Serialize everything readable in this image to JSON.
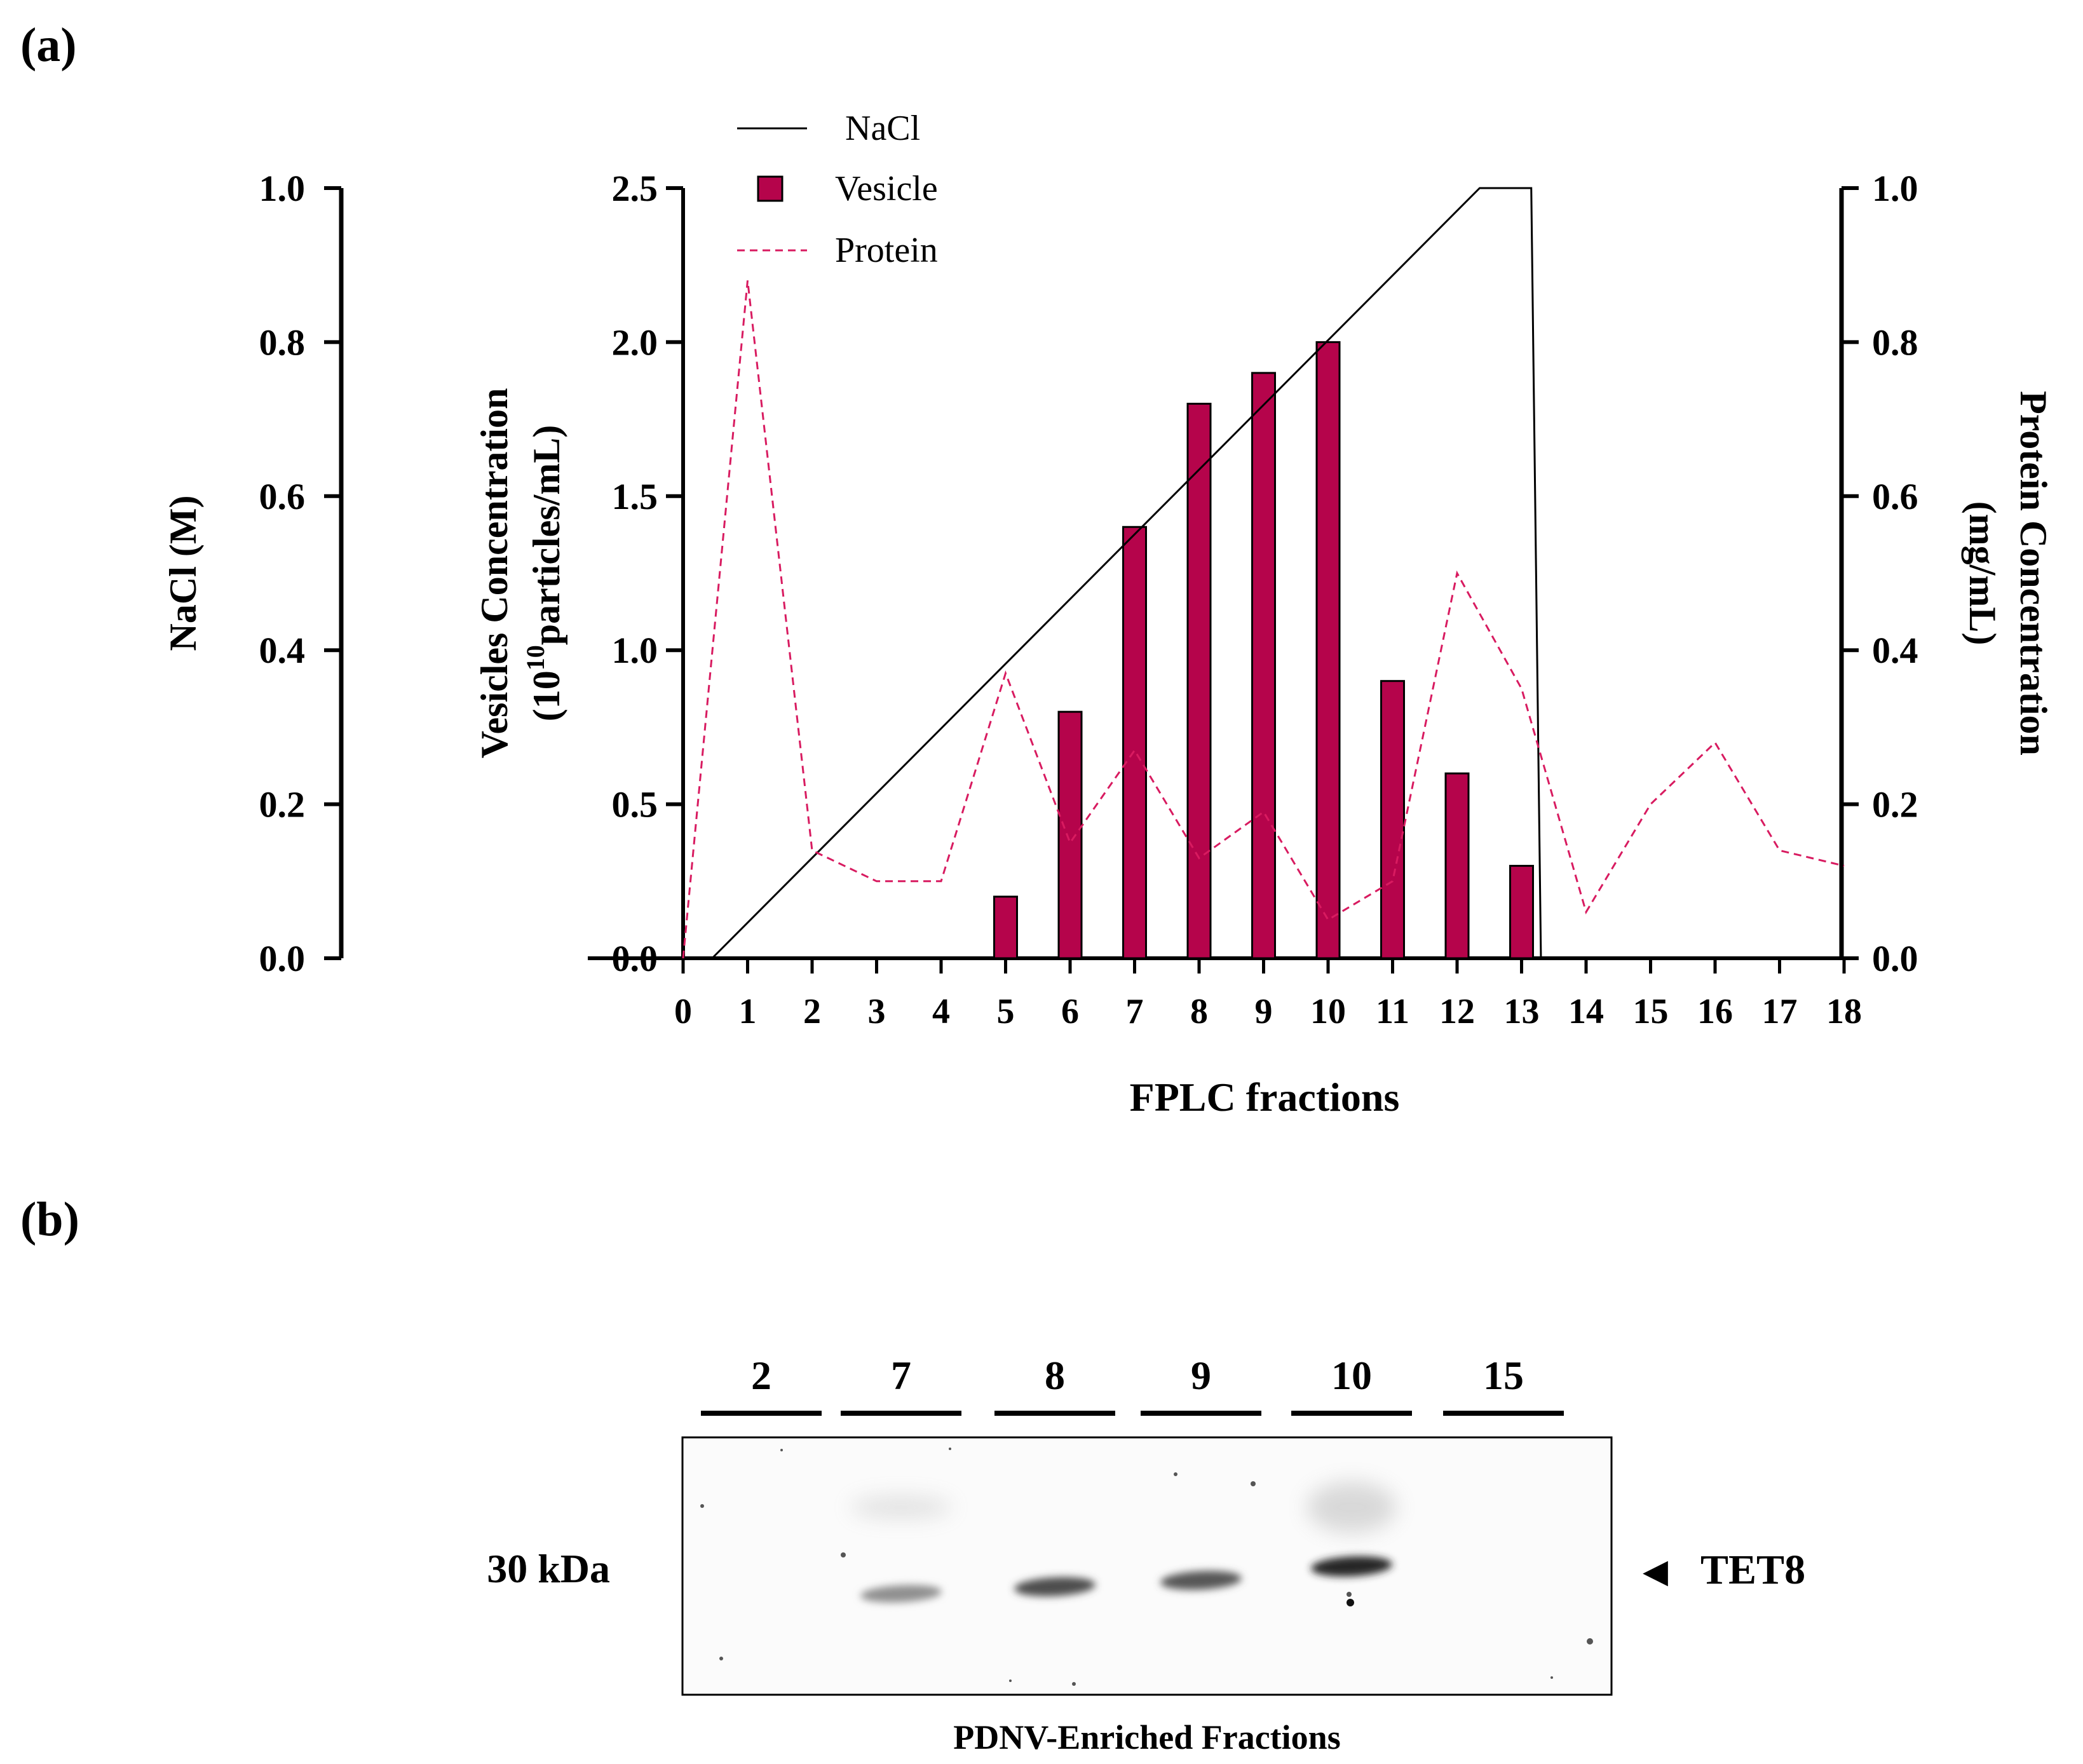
{
  "panel_a_label": "(a)",
  "panel_b_label": "(b)",
  "chart_data": {
    "type": "bar",
    "xlabel": "FPLC fractions",
    "x_ticks": [
      "0",
      "1",
      "2",
      "3",
      "4",
      "5",
      "6",
      "7",
      "8",
      "9",
      "10",
      "11",
      "12",
      "13",
      "14",
      "15",
      "16",
      "17",
      "18"
    ],
    "left_axis": {
      "label": "NaCl (M)",
      "ylim": [
        0,
        1.0
      ],
      "ticks": [
        "0.0",
        "0.2",
        "0.4",
        "0.6",
        "0.8",
        "1.0"
      ]
    },
    "middle_axis": {
      "label_line1": "Vesicles Concentration",
      "label_line2_pre": "(10",
      "label_line2_sup": "10",
      "label_line2_post": "particles/mL)",
      "ylim": [
        0,
        2.5
      ],
      "ticks": [
        "0.0",
        "0.5",
        "1.0",
        "1.5",
        "2.0",
        "2.5"
      ]
    },
    "right_axis": {
      "label_line1": "Protein Concentration",
      "label_line2": "(mg/mL)",
      "ylim": [
        0,
        1.0
      ],
      "ticks": [
        "0.0",
        "0.2",
        "0.4",
        "0.6",
        "0.8",
        "1.0"
      ]
    },
    "legend": [
      {
        "name": "NaCl",
        "style": "solid line",
        "color": "#000000"
      },
      {
        "name": "Vesicle",
        "style": "bar",
        "color": "#b5044b"
      },
      {
        "name": "Protein",
        "style": "dashed line",
        "color": "#d81b60"
      }
    ],
    "series": [
      {
        "name": "Vesicle",
        "type": "bar",
        "axis": "middle",
        "x": [
          5,
          6,
          7,
          8,
          9,
          10,
          11,
          12,
          13
        ],
        "values": [
          0.2,
          0.8,
          1.4,
          1.8,
          1.9,
          2.0,
          0.9,
          0.6,
          0.3
        ]
      },
      {
        "name": "NaCl",
        "type": "line",
        "axis": "left",
        "x": [
          0.45,
          12.35,
          13.15,
          13.3
        ],
        "values": [
          0.0,
          1.0,
          1.0,
          0.0
        ]
      },
      {
        "name": "Protein",
        "type": "line",
        "axis": "right",
        "x": [
          0,
          1,
          2,
          3,
          4,
          5,
          6,
          7,
          8,
          9,
          10,
          11,
          12,
          13,
          14,
          15,
          16,
          17,
          18
        ],
        "values": [
          0.0,
          0.88,
          0.14,
          0.1,
          0.1,
          0.37,
          0.15,
          0.27,
          0.13,
          0.19,
          0.05,
          0.1,
          0.5,
          0.35,
          0.06,
          0.2,
          0.28,
          0.14,
          0.12
        ]
      }
    ]
  },
  "blot": {
    "lanes": [
      "2",
      "7",
      "8",
      "9",
      "10",
      "15"
    ],
    "marker": "30 kDa",
    "target_label": "TET8",
    "target_arrow": "◀",
    "caption": "PDNV-Enriched Fractions",
    "band_intensity": [
      0,
      0.35,
      0.7,
      0.65,
      0.9,
      0
    ]
  }
}
